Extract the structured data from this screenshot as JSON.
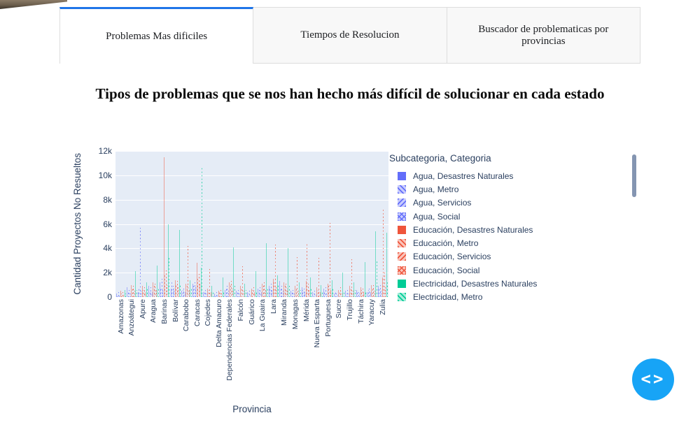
{
  "tabs": [
    {
      "label": "Problemas Mas dificiles",
      "active": true
    },
    {
      "label": "Tiempos de Resolucion",
      "active": false
    },
    {
      "label": "Buscador de problematicas por provincias",
      "active": false
    }
  ],
  "title": "Tipos de problemas que se nos han hecho más difícil de solucionar en cada estado",
  "chart_data": {
    "type": "bar",
    "title": "",
    "xlabel": "Provincia",
    "ylabel": "Cantidad Proyectos No Resueltos",
    "ylim": [
      0,
      12000
    ],
    "yticks": [
      0,
      2000,
      4000,
      6000,
      8000,
      10000,
      12000
    ],
    "ytick_labels": [
      "0",
      "2k",
      "4k",
      "6k",
      "8k",
      "10k",
      "12k"
    ],
    "grid": true,
    "plot_bg": "#E5ECF6",
    "legend_title": "Subcategoria, Categoria",
    "legend_position": "right",
    "legend_scrollable": true,
    "categories": [
      "Amazonas",
      "Anzoátegui",
      "Apure",
      "Aragua",
      "Barinas",
      "Bolívar",
      "Carabobo",
      "Caracas",
      "Cojedes",
      "Delta Amacuro",
      "Dependencias Federales",
      "Falcón",
      "Guárico",
      "La Guaira",
      "Lara",
      "Miranda",
      "Monagas",
      "Mérida",
      "Nueva Esparta",
      "Portuguesa",
      "Sucre",
      "Trujillo",
      "Táchira",
      "Yaracuy",
      "Zulia"
    ],
    "series": [
      {
        "name": "Agua, Desastres Naturales",
        "color": "#636EFA",
        "pattern": "solid",
        "values": [
          300,
          800,
          400,
          900,
          1200,
          700,
          500,
          1100,
          400,
          300,
          600,
          500,
          400,
          700,
          900,
          1300,
          500,
          800,
          400,
          700,
          300,
          500,
          600,
          400,
          900
        ]
      },
      {
        "name": "Agua, Metro",
        "color": "#636EFA",
        "pattern": "slash",
        "values": [
          200,
          400,
          700,
          500,
          800,
          1200,
          600,
          900,
          500,
          200,
          800,
          400,
          300,
          600,
          700,
          800,
          400,
          600,
          300,
          500,
          400,
          300,
          500,
          600,
          700
        ]
      },
      {
        "name": "Agua, Servicios",
        "color": "#636EFA",
        "pattern": "backslash",
        "values": [
          400,
          600,
          5700,
          800,
          1500,
          900,
          700,
          1200,
          600,
          400,
          900,
          600,
          500,
          800,
          1100,
          900,
          600,
          700,
          500,
          800,
          300,
          600,
          400,
          700,
          1000
        ]
      },
      {
        "name": "Agua, Social",
        "color": "#636EFA",
        "pattern": "cross",
        "values": [
          100,
          300,
          500,
          400,
          600,
          700,
          400,
          800,
          300,
          200,
          500,
          300,
          200,
          400,
          600,
          500,
          300,
          400,
          200,
          300,
          200,
          300,
          300,
          400,
          500
        ]
      },
      {
        "name": "Educación, Desastres Naturales",
        "color": "#EF553B",
        "pattern": "solid",
        "values": [
          500,
          1000,
          900,
          1200,
          11500,
          1400,
          1100,
          2800,
          700,
          500,
          1200,
          900,
          700,
          1100,
          1500,
          1200,
          900,
          1300,
          800,
          1100,
          600,
          900,
          800,
          1000,
          1600
        ]
      },
      {
        "name": "Educación, Metro",
        "color": "#EF553B",
        "pattern": "slash",
        "values": [
          300,
          700,
          600,
          900,
          1800,
          1100,
          900,
          1500,
          600,
          400,
          1000,
          700,
          600,
          900,
          1200,
          1000,
          700,
          4500,
          600,
          900,
          500,
          700,
          600,
          800,
          7200
        ]
      },
      {
        "name": "Educación, Servicios",
        "color": "#EF553B",
        "pattern": "backslash",
        "values": [
          400,
          900,
          800,
          1100,
          2200,
          1300,
          4200,
          1900,
          2300,
          600,
          1300,
          2500,
          800,
          1200,
          4300,
          1100,
          3300,
          1100,
          3200,
          6100,
          800,
          3100,
          700,
          1000,
          2000
        ]
      },
      {
        "name": "Educación, Social",
        "color": "#EF553B",
        "pattern": "cross",
        "values": [
          200,
          500,
          400,
          600,
          1000,
          800,
          600,
          1100,
          400,
          300,
          700,
          500,
          400,
          600,
          800,
          700,
          500,
          600,
          400,
          600,
          300,
          500,
          400,
          500,
          800
        ]
      },
      {
        "name": "Electricidad, Desastres Naturales",
        "color": "#00CC96",
        "pattern": "solid",
        "values": [
          600,
          2100,
          1200,
          2600,
          6000,
          5500,
          1400,
          2400,
          900,
          1600,
          4100,
          1100,
          2100,
          4400,
          1800,
          4000,
          1200,
          1600,
          1000,
          1400,
          2000,
          1200,
          2900,
          5400,
          5300
        ]
      },
      {
        "name": "Electricidad, Metro",
        "color": "#00CC96",
        "pattern": "slash",
        "values": [
          300,
          600,
          700,
          800,
          3300,
          1000,
          800,
          10600,
          500,
          400,
          900,
          600,
          500,
          800,
          1000,
          900,
          600,
          700,
          500,
          700,
          400,
          600,
          500,
          3000,
          1200
        ]
      }
    ]
  },
  "floating_button": {
    "icon": "code-icon",
    "glyph": "<>",
    "color": "#17a4f6"
  },
  "colors": {
    "tab_active_accent": "#1f75e8",
    "chart_text": "#2a3f5f",
    "plot_background": "#E5ECF6",
    "legend_scrollbar": "#8495b1"
  }
}
